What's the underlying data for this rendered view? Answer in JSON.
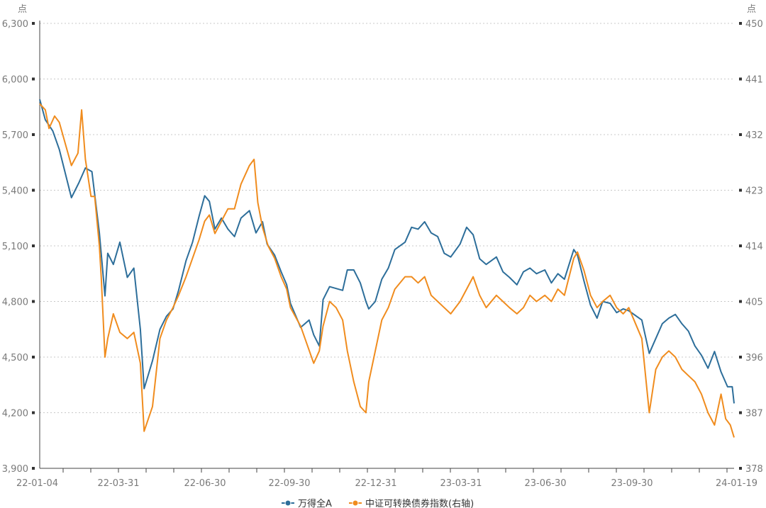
{
  "chart_data": {
    "type": "line",
    "title": "",
    "left_unit": "点",
    "right_unit": "点",
    "x_ticks": [
      "22-01-04",
      "22-03-31",
      "22-06-30",
      "22-09-30",
      "22-12-31",
      "23-03-31",
      "23-06-30",
      "23-09-30",
      "24-01-19"
    ],
    "y_left": {
      "ticks": [
        "3,900",
        "4,200",
        "4,500",
        "4,800",
        "5,100",
        "5,400",
        "5,700",
        "6,000",
        "6,300"
      ],
      "ylim": [
        3900,
        6300
      ]
    },
    "y_right": {
      "ticks": [
        "378",
        "387",
        "396",
        "405",
        "414",
        "423",
        "432",
        "441",
        "450"
      ],
      "ylim": [
        378,
        450
      ]
    },
    "grid": true,
    "legend_position": "bottom",
    "series": [
      {
        "name": "万得全A",
        "axis": "left",
        "color": "#2d6e9a",
        "points": [
          [
            "2022-01-04",
            5890
          ],
          [
            "2022-01-10",
            5780
          ],
          [
            "2022-01-18",
            5720
          ],
          [
            "2022-01-25",
            5620
          ],
          [
            "2022-02-07",
            5360
          ],
          [
            "2022-02-15",
            5440
          ],
          [
            "2022-02-22",
            5520
          ],
          [
            "2022-03-01",
            5500
          ],
          [
            "2022-03-09",
            5170
          ],
          [
            "2022-03-15",
            4830
          ],
          [
            "2022-03-18",
            5060
          ],
          [
            "2022-03-24",
            5000
          ],
          [
            "2022-03-31",
            5120
          ],
          [
            "2022-04-08",
            4930
          ],
          [
            "2022-04-15",
            4980
          ],
          [
            "2022-04-22",
            4650
          ],
          [
            "2022-04-26",
            4330
          ],
          [
            "2022-05-05",
            4480
          ],
          [
            "2022-05-13",
            4650
          ],
          [
            "2022-05-20",
            4720
          ],
          [
            "2022-05-27",
            4760
          ],
          [
            "2022-06-02",
            4860
          ],
          [
            "2022-06-10",
            5020
          ],
          [
            "2022-06-17",
            5120
          ],
          [
            "2022-06-24",
            5260
          ],
          [
            "2022-06-30",
            5370
          ],
          [
            "2022-07-05",
            5340
          ],
          [
            "2022-07-11",
            5190
          ],
          [
            "2022-07-18",
            5250
          ],
          [
            "2022-07-25",
            5190
          ],
          [
            "2022-08-01",
            5150
          ],
          [
            "2022-08-08",
            5250
          ],
          [
            "2022-08-17",
            5290
          ],
          [
            "2022-08-24",
            5170
          ],
          [
            "2022-08-31",
            5230
          ],
          [
            "2022-09-05",
            5110
          ],
          [
            "2022-09-13",
            5050
          ],
          [
            "2022-09-20",
            4960
          ],
          [
            "2022-09-26",
            4890
          ],
          [
            "2022-09-30",
            4790
          ],
          [
            "2022-10-11",
            4660
          ],
          [
            "2022-10-20",
            4700
          ],
          [
            "2022-10-25",
            4620
          ],
          [
            "2022-10-31",
            4560
          ],
          [
            "2022-11-04",
            4810
          ],
          [
            "2022-11-11",
            4880
          ],
          [
            "2022-11-18",
            4870
          ],
          [
            "2022-11-25",
            4860
          ],
          [
            "2022-11-30",
            4970
          ],
          [
            "2022-12-07",
            4970
          ],
          [
            "2022-12-14",
            4900
          ],
          [
            "2022-12-20",
            4800
          ],
          [
            "2022-12-23",
            4760
          ],
          [
            "2022-12-30",
            4800
          ],
          [
            "2023-01-06",
            4920
          ],
          [
            "2023-01-13",
            4980
          ],
          [
            "2023-01-20",
            5080
          ],
          [
            "2023-01-31",
            5120
          ],
          [
            "2023-02-07",
            5200
          ],
          [
            "2023-02-14",
            5190
          ],
          [
            "2023-02-21",
            5230
          ],
          [
            "2023-02-28",
            5170
          ],
          [
            "2023-03-07",
            5150
          ],
          [
            "2023-03-14",
            5060
          ],
          [
            "2023-03-21",
            5040
          ],
          [
            "2023-03-31",
            5110
          ],
          [
            "2023-04-07",
            5200
          ],
          [
            "2023-04-14",
            5160
          ],
          [
            "2023-04-21",
            5030
          ],
          [
            "2023-04-28",
            5000
          ],
          [
            "2023-05-09",
            5040
          ],
          [
            "2023-05-16",
            4960
          ],
          [
            "2023-05-23",
            4930
          ],
          [
            "2023-05-31",
            4890
          ],
          [
            "2023-06-07",
            4960
          ],
          [
            "2023-06-14",
            4980
          ],
          [
            "2023-06-21",
            4950
          ],
          [
            "2023-06-30",
            4970
          ],
          [
            "2023-07-07",
            4900
          ],
          [
            "2023-07-14",
            4950
          ],
          [
            "2023-07-21",
            4920
          ],
          [
            "2023-07-31",
            5080
          ],
          [
            "2023-08-04",
            5050
          ],
          [
            "2023-08-11",
            4910
          ],
          [
            "2023-08-18",
            4780
          ],
          [
            "2023-08-25",
            4710
          ],
          [
            "2023-08-31",
            4800
          ],
          [
            "2023-09-08",
            4790
          ],
          [
            "2023-09-15",
            4740
          ],
          [
            "2023-09-22",
            4760
          ],
          [
            "2023-09-28",
            4750
          ],
          [
            "2023-10-12",
            4700
          ],
          [
            "2023-10-20",
            4520
          ],
          [
            "2023-10-27",
            4600
          ],
          [
            "2023-11-03",
            4680
          ],
          [
            "2023-11-10",
            4710
          ],
          [
            "2023-11-17",
            4730
          ],
          [
            "2023-11-24",
            4680
          ],
          [
            "2023-12-01",
            4640
          ],
          [
            "2023-12-08",
            4560
          ],
          [
            "2023-12-15",
            4510
          ],
          [
            "2023-12-22",
            4440
          ],
          [
            "2023-12-29",
            4530
          ],
          [
            "2024-01-05",
            4420
          ],
          [
            "2024-01-12",
            4340
          ],
          [
            "2024-01-17",
            4340
          ],
          [
            "2024-01-19",
            4250
          ]
        ]
      },
      {
        "name": "中证可转换债券指数(右轴)",
        "axis": "right",
        "color": "#f08c1e",
        "points": [
          [
            "2022-01-04",
            437
          ],
          [
            "2022-01-10",
            436
          ],
          [
            "2022-01-14",
            433
          ],
          [
            "2022-01-20",
            435
          ],
          [
            "2022-01-25",
            434
          ],
          [
            "2022-02-07",
            427
          ],
          [
            "2022-02-14",
            429
          ],
          [
            "2022-02-18",
            436
          ],
          [
            "2022-02-22",
            428
          ],
          [
            "2022-02-28",
            422
          ],
          [
            "2022-03-04",
            422
          ],
          [
            "2022-03-09",
            414
          ],
          [
            "2022-03-11",
            409
          ],
          [
            "2022-03-15",
            396
          ],
          [
            "2022-03-18",
            399
          ],
          [
            "2022-03-24",
            403
          ],
          [
            "2022-03-31",
            400
          ],
          [
            "2022-04-08",
            399
          ],
          [
            "2022-04-15",
            400
          ],
          [
            "2022-04-22",
            395
          ],
          [
            "2022-04-26",
            384
          ],
          [
            "2022-05-05",
            388
          ],
          [
            "2022-05-13",
            399
          ],
          [
            "2022-05-20",
            402
          ],
          [
            "2022-05-27",
            404
          ],
          [
            "2022-06-02",
            406
          ],
          [
            "2022-06-10",
            409
          ],
          [
            "2022-06-17",
            412
          ],
          [
            "2022-06-24",
            415
          ],
          [
            "2022-06-30",
            418
          ],
          [
            "2022-07-05",
            419
          ],
          [
            "2022-07-11",
            416
          ],
          [
            "2022-07-18",
            418
          ],
          [
            "2022-07-25",
            420
          ],
          [
            "2022-08-01",
            420
          ],
          [
            "2022-08-08",
            424
          ],
          [
            "2022-08-17",
            427
          ],
          [
            "2022-08-22",
            428
          ],
          [
            "2022-08-26",
            421
          ],
          [
            "2022-08-31",
            417
          ],
          [
            "2022-09-06",
            414
          ],
          [
            "2022-09-13",
            412
          ],
          [
            "2022-09-20",
            409
          ],
          [
            "2022-09-26",
            407
          ],
          [
            "2022-09-30",
            404
          ],
          [
            "2022-10-11",
            401
          ],
          [
            "2022-10-18",
            398
          ],
          [
            "2022-10-25",
            395
          ],
          [
            "2022-10-31",
            397
          ],
          [
            "2022-11-04",
            401
          ],
          [
            "2022-11-11",
            405
          ],
          [
            "2022-11-18",
            404
          ],
          [
            "2022-11-25",
            402
          ],
          [
            "2022-11-30",
            397
          ],
          [
            "2022-12-07",
            392
          ],
          [
            "2022-12-14",
            388
          ],
          [
            "2022-12-20",
            387
          ],
          [
            "2022-12-23",
            392
          ],
          [
            "2022-12-30",
            397
          ],
          [
            "2023-01-06",
            402
          ],
          [
            "2023-01-13",
            404
          ],
          [
            "2023-01-20",
            407
          ],
          [
            "2023-01-31",
            409
          ],
          [
            "2023-02-07",
            409
          ],
          [
            "2023-02-14",
            408
          ],
          [
            "2023-02-21",
            409
          ],
          [
            "2023-02-28",
            406
          ],
          [
            "2023-03-07",
            405
          ],
          [
            "2023-03-14",
            404
          ],
          [
            "2023-03-21",
            403
          ],
          [
            "2023-03-31",
            405
          ],
          [
            "2023-04-07",
            407
          ],
          [
            "2023-04-14",
            409
          ],
          [
            "2023-04-21",
            406
          ],
          [
            "2023-04-28",
            404
          ],
          [
            "2023-05-09",
            406
          ],
          [
            "2023-05-16",
            405
          ],
          [
            "2023-05-23",
            404
          ],
          [
            "2023-05-31",
            403
          ],
          [
            "2023-06-07",
            404
          ],
          [
            "2023-06-14",
            406
          ],
          [
            "2023-06-21",
            405
          ],
          [
            "2023-06-30",
            406
          ],
          [
            "2023-07-07",
            405
          ],
          [
            "2023-07-14",
            407
          ],
          [
            "2023-07-21",
            406
          ],
          [
            "2023-07-31",
            412
          ],
          [
            "2023-08-04",
            413
          ],
          [
            "2023-08-11",
            410
          ],
          [
            "2023-08-18",
            406
          ],
          [
            "2023-08-25",
            404
          ],
          [
            "2023-08-31",
            405
          ],
          [
            "2023-09-08",
            406
          ],
          [
            "2023-09-15",
            404
          ],
          [
            "2023-09-22",
            403
          ],
          [
            "2023-09-28",
            404
          ],
          [
            "2023-10-12",
            399
          ],
          [
            "2023-10-20",
            387
          ],
          [
            "2023-10-27",
            394
          ],
          [
            "2023-11-03",
            396
          ],
          [
            "2023-11-10",
            397
          ],
          [
            "2023-11-17",
            396
          ],
          [
            "2023-11-24",
            394
          ],
          [
            "2023-12-01",
            393
          ],
          [
            "2023-12-08",
            392
          ],
          [
            "2023-12-15",
            390
          ],
          [
            "2023-12-22",
            387
          ],
          [
            "2023-12-29",
            385
          ],
          [
            "2024-01-05",
            390
          ],
          [
            "2024-01-10",
            386
          ],
          [
            "2024-01-15",
            385
          ],
          [
            "2024-01-19",
            383
          ]
        ]
      }
    ]
  }
}
